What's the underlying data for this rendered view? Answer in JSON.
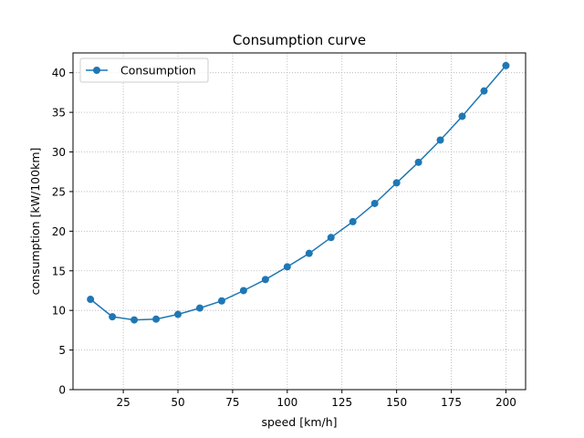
{
  "chart_data": {
    "type": "line",
    "title": "Consumption curve",
    "xlabel": "speed [km/h]",
    "ylabel": "consumption [kW/100km]",
    "xlim": [
      2,
      209
    ],
    "ylim": [
      0,
      42.5
    ],
    "xticks": [
      25,
      50,
      75,
      100,
      125,
      150,
      175,
      200
    ],
    "yticks": [
      0,
      5,
      10,
      15,
      20,
      25,
      30,
      35,
      40
    ],
    "grid": true,
    "legend_position": "top-left",
    "series": [
      {
        "name": "Consumption",
        "color": "#1f77b4",
        "marker": "circle",
        "x": [
          10,
          20,
          30,
          40,
          50,
          60,
          70,
          80,
          90,
          100,
          110,
          120,
          130,
          140,
          150,
          160,
          170,
          180,
          190,
          200
        ],
        "y": [
          11.4,
          9.2,
          8.8,
          8.9,
          9.5,
          10.3,
          11.2,
          12.5,
          13.9,
          15.5,
          17.2,
          19.2,
          21.2,
          23.5,
          26.1,
          28.7,
          31.5,
          34.5,
          37.7,
          40.9
        ]
      }
    ]
  }
}
